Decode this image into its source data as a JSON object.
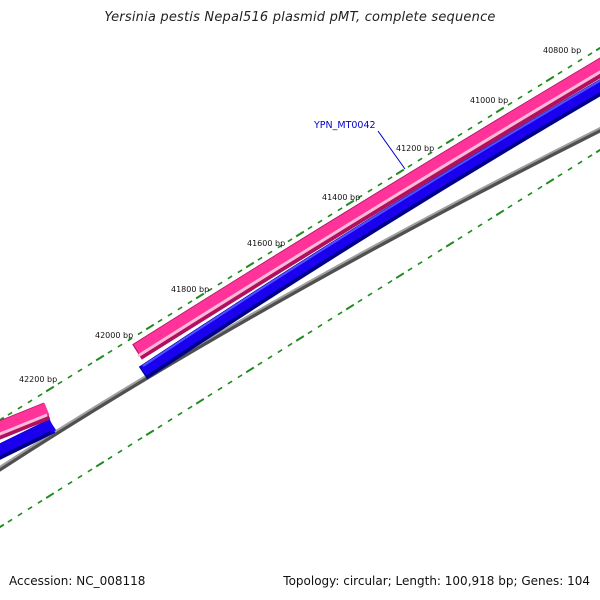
{
  "title": "Yersinia pestis Nepal516 plasmid pMT, complete sequence",
  "footer": {
    "accession": "Accession: NC_008118",
    "summary": "Topology: circular; Length: 100,918 bp; Genes: 104"
  },
  "position_labels": [
    "40800 bp",
    "41000 bp",
    "41200 bp",
    "41400 bp",
    "41600 bp",
    "41800 bp",
    "42000 bp",
    "42200 bp"
  ],
  "gene_label": "YPN_MT0042",
  "colors": {
    "gene_pink": "#ff3399",
    "gene_pink_light": "#ffbbd9",
    "gene_pink_dark": "#b0105e",
    "cds_blue": "#1100ee",
    "cds_blue_dark": "#000088",
    "backbone": "#808080",
    "tick_green": "#1e8c1e",
    "label_blue": "#0000cc"
  }
}
